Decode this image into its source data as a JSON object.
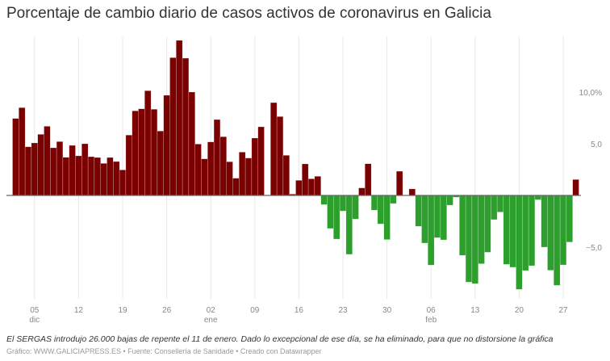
{
  "title": "Porcentaje de cambio diario de casos activos de coronavirus en Galicia",
  "note": "El SERGAS introdujo 26.000 bajas de repente el 11 de enero. Dado lo excepcional de ese día, se ha eliminado, para que no distorsione la gráfica",
  "source": "Gráfico: WWW.GALICIAPRESS.ES • Fuente: Consellería de Sanidade • Creado con Datawrapper",
  "chart_data": {
    "type": "bar",
    "start_date": "2020-12-02",
    "end_date": "2021-03-01",
    "ylim": [
      -9.1,
      15
    ],
    "grid": "vertical",
    "colors": {
      "positive": "#7b0000",
      "negative": "#2c9f2c"
    },
    "y_ticks": [
      {
        "value": 10,
        "label": "10,0%"
      },
      {
        "value": 5,
        "label": "5,0"
      },
      {
        "value": -5,
        "label": "−5,0"
      }
    ],
    "x_ticks": [
      {
        "date": "2020-12-05",
        "label": "05",
        "sub": "dic"
      },
      {
        "date": "2020-12-12",
        "label": "12",
        "sub": ""
      },
      {
        "date": "2020-12-19",
        "label": "19",
        "sub": ""
      },
      {
        "date": "2020-12-26",
        "label": "26",
        "sub": ""
      },
      {
        "date": "2021-01-02",
        "label": "02",
        "sub": "ene"
      },
      {
        "date": "2021-01-09",
        "label": "09",
        "sub": ""
      },
      {
        "date": "2021-01-16",
        "label": "16",
        "sub": ""
      },
      {
        "date": "2021-01-23",
        "label": "23",
        "sub": ""
      },
      {
        "date": "2021-01-30",
        "label": "30",
        "sub": ""
      },
      {
        "date": "2021-02-06",
        "label": "06",
        "sub": "feb"
      },
      {
        "date": "2021-02-13",
        "label": "13",
        "sub": ""
      },
      {
        "date": "2021-02-20",
        "label": "20",
        "sub": ""
      },
      {
        "date": "2021-02-27",
        "label": "27",
        "sub": ""
      }
    ],
    "values": [
      7.45,
      8.49,
      4.71,
      5.08,
      5.91,
      6.69,
      4.61,
      5.21,
      3.69,
      4.84,
      3.83,
      5.0,
      3.75,
      3.67,
      3.1,
      3.67,
      3.28,
      2.47,
      5.84,
      8.18,
      8.38,
      10.13,
      8.34,
      6.23,
      9.69,
      13.33,
      15.0,
      13.28,
      10.0,
      4.97,
      3.54,
      5.18,
      7.34,
      5.68,
      3.26,
      1.67,
      4.19,
      3.62,
      5.55,
      6.64,
      null,
      8.98,
      7.63,
      3.88,
      0.13,
      1.46,
      3.05,
      1.61,
      1.85,
      -0.89,
      -3.2,
      -4.22,
      -1.51,
      -5.7,
      -2.29,
      0.73,
      3.07,
      -1.43,
      -2.76,
      -4.27,
      -0.78,
      2.34,
      0,
      0.63,
      -2.99,
      -4.61,
      -6.74,
      -4.09,
      -4.3,
      -0.94,
      -0.18,
      -5.8,
      -8.39,
      -8.54,
      -6.61,
      -5.5,
      -2.34,
      -1.61,
      -6.67,
      -6.95,
      -9.09,
      -7.27,
      -6.8,
      -0.42,
      -5.0,
      -7.24,
      -8.7,
      -6.72,
      -4.51,
      1.54
    ]
  }
}
